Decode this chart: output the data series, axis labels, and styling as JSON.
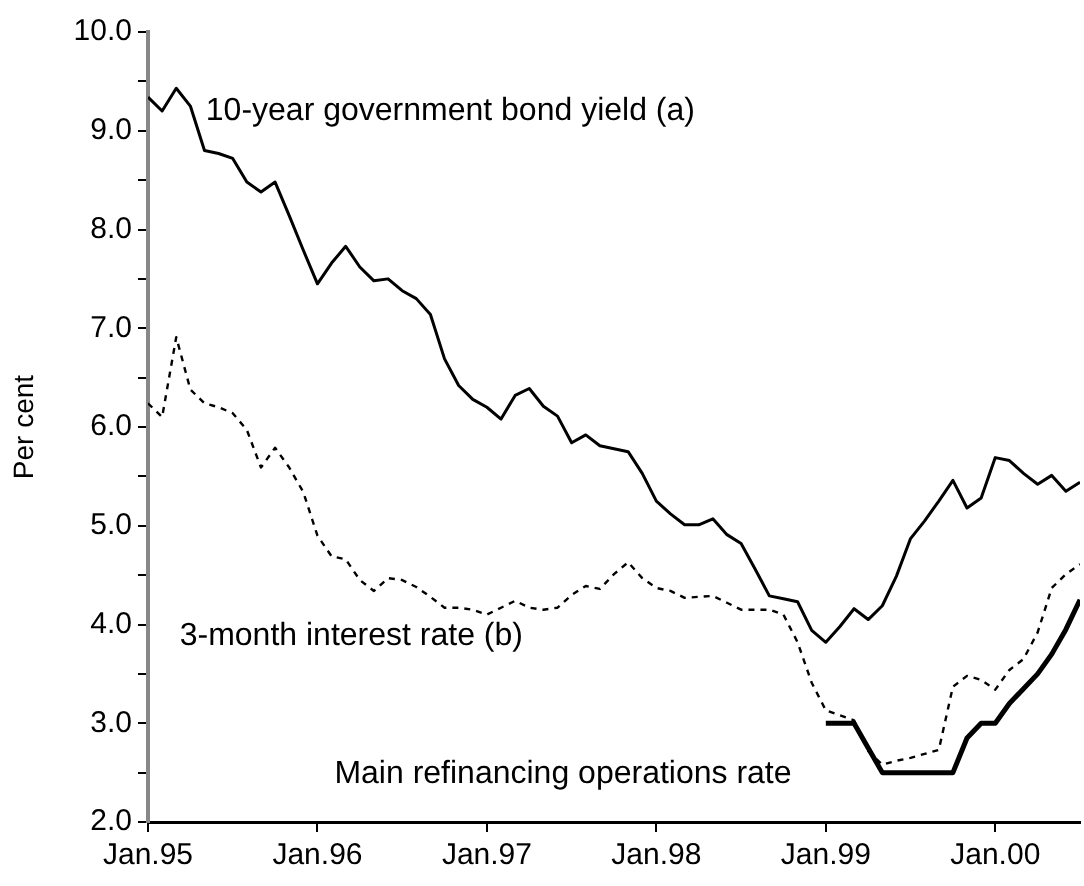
{
  "chart_data": {
    "type": "line",
    "ylabel": "Per cent",
    "x": [
      "1995-01",
      "1995-02",
      "1995-03",
      "1995-04",
      "1995-05",
      "1995-06",
      "1995-07",
      "1995-08",
      "1995-09",
      "1995-10",
      "1995-11",
      "1995-12",
      "1996-01",
      "1996-02",
      "1996-03",
      "1996-04",
      "1996-05",
      "1996-06",
      "1996-07",
      "1996-08",
      "1996-09",
      "1996-10",
      "1996-11",
      "1996-12",
      "1997-01",
      "1997-02",
      "1997-03",
      "1997-04",
      "1997-05",
      "1997-06",
      "1997-07",
      "1997-08",
      "1997-09",
      "1997-10",
      "1997-11",
      "1997-12",
      "1998-01",
      "1998-02",
      "1998-03",
      "1998-04",
      "1998-05",
      "1998-06",
      "1998-07",
      "1998-08",
      "1998-09",
      "1998-10",
      "1998-11",
      "1998-12",
      "1999-01",
      "1999-02",
      "1999-03",
      "1999-04",
      "1999-05",
      "1999-06",
      "1999-07",
      "1999-08",
      "1999-09",
      "1999-10",
      "1999-11",
      "1999-12",
      "2000-01",
      "2000-02",
      "2000-03",
      "2000-04",
      "2000-05",
      "2000-06",
      "2000-07"
    ],
    "series": [
      {
        "name": "10-year government bond yield (a)",
        "color": "#000000",
        "line_style": "solid",
        "values": [
          9.34,
          9.2,
          9.43,
          9.25,
          8.8,
          8.77,
          8.72,
          8.48,
          8.38,
          8.48,
          8.14,
          7.79,
          7.45,
          7.66,
          7.83,
          7.62,
          7.48,
          7.5,
          7.38,
          7.3,
          7.14,
          6.69,
          6.42,
          6.28,
          6.2,
          6.08,
          6.32,
          6.39,
          6.21,
          6.11,
          5.84,
          5.92,
          5.81,
          5.78,
          5.75,
          5.53,
          5.25,
          5.12,
          5.01,
          5.01,
          5.07,
          4.91,
          4.82,
          4.56,
          4.29,
          4.26,
          4.23,
          3.94,
          3.82,
          3.98,
          4.16,
          4.05,
          4.19,
          4.49,
          4.87,
          5.05,
          5.25,
          5.46,
          5.18,
          5.28,
          5.69,
          5.66,
          5.53,
          5.42,
          5.51,
          5.35,
          5.44
        ]
      },
      {
        "name": "3-month interest rate (b)",
        "color": "#000000",
        "line_style": "dashed",
        "values": [
          6.24,
          6.1,
          6.91,
          6.38,
          6.24,
          6.2,
          6.14,
          5.97,
          5.59,
          5.79,
          5.59,
          5.34,
          4.9,
          4.69,
          4.66,
          4.45,
          4.34,
          4.47,
          4.45,
          4.38,
          4.28,
          4.17,
          4.17,
          4.15,
          4.1,
          4.17,
          4.24,
          4.17,
          4.15,
          4.17,
          4.3,
          4.39,
          4.36,
          4.51,
          4.63,
          4.47,
          4.37,
          4.34,
          4.27,
          4.28,
          4.29,
          4.22,
          4.15,
          4.15,
          4.15,
          4.1,
          3.82,
          3.41,
          3.13,
          3.08,
          3.03,
          2.72,
          2.58,
          2.62,
          2.65,
          2.69,
          2.73,
          3.37,
          3.48,
          3.44,
          3.34,
          3.54,
          3.65,
          3.92,
          4.37,
          4.51,
          4.61
        ]
      },
      {
        "name": "Main refinancing operations rate",
        "color": "#000000",
        "line_style": "solid",
        "values": [
          null,
          null,
          null,
          null,
          null,
          null,
          null,
          null,
          null,
          null,
          null,
          null,
          null,
          null,
          null,
          null,
          null,
          null,
          null,
          null,
          null,
          null,
          null,
          null,
          null,
          null,
          null,
          null,
          null,
          null,
          null,
          null,
          null,
          null,
          null,
          null,
          null,
          null,
          null,
          null,
          null,
          null,
          null,
          null,
          null,
          null,
          null,
          null,
          3.0,
          3.0,
          3.0,
          2.75,
          2.5,
          2.5,
          2.5,
          2.5,
          2.5,
          2.5,
          2.85,
          3.0,
          3.0,
          3.2,
          3.35,
          3.5,
          3.7,
          3.95,
          4.25
        ]
      }
    ],
    "xlim": [
      "1995-01",
      "2000-07"
    ],
    "xticks": [
      {
        "value": "1995-01",
        "label": "Jan.95"
      },
      {
        "value": "1996-01",
        "label": "Jan.96"
      },
      {
        "value": "1997-01",
        "label": "Jan.97"
      },
      {
        "value": "1998-01",
        "label": "Jan.98"
      },
      {
        "value": "1999-01",
        "label": "Jan.99"
      },
      {
        "value": "2000-01",
        "label": "Jan.00"
      }
    ],
    "ylim": [
      2,
      10
    ],
    "yticks": [
      {
        "value": 2,
        "label": "2.0"
      },
      {
        "value": 2.5,
        "label": null
      },
      {
        "value": 3,
        "label": "3.0"
      },
      {
        "value": 3.5,
        "label": null
      },
      {
        "value": 4,
        "label": "4.0"
      },
      {
        "value": 4.5,
        "label": null
      },
      {
        "value": 5,
        "label": "5.0"
      },
      {
        "value": 5.5,
        "label": null
      },
      {
        "value": 6,
        "label": "6.0"
      },
      {
        "value": 6.5,
        "label": null
      },
      {
        "value": 7,
        "label": "7.0"
      },
      {
        "value": 7.5,
        "label": null
      },
      {
        "value": 8,
        "label": "8.0"
      },
      {
        "value": 8.5,
        "label": null
      },
      {
        "value": 9,
        "label": "9.0"
      },
      {
        "value": 9.5,
        "label": null
      },
      {
        "value": 10,
        "label": "10.0"
      }
    ],
    "grid": false,
    "legend": false,
    "marker": "none"
  }
}
